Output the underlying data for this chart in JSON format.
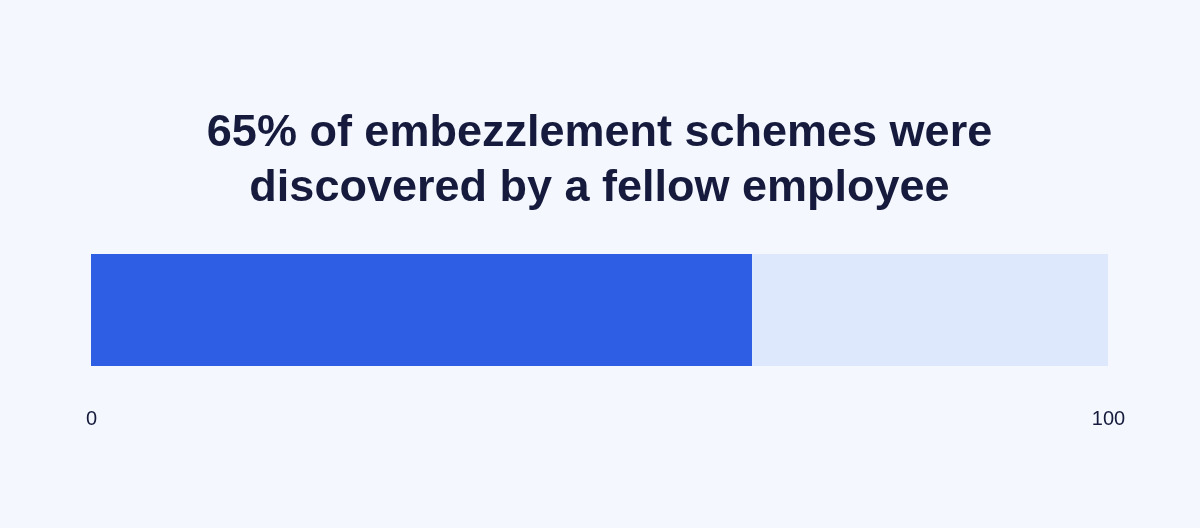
{
  "chart_data": {
    "type": "bar",
    "title": "65% of embezzlement schemes were\ndiscovered by a fellow employee",
    "orientation": "horizontal",
    "stacked": true,
    "categories": [
      null
    ],
    "series": [
      {
        "color": "#2d5ee3",
        "values": [
          65
        ]
      },
      {
        "color": "#dde8fc",
        "values": [
          35
        ]
      }
    ],
    "xlim": [
      0,
      100
    ],
    "xticks": [
      0,
      100
    ]
  }
}
